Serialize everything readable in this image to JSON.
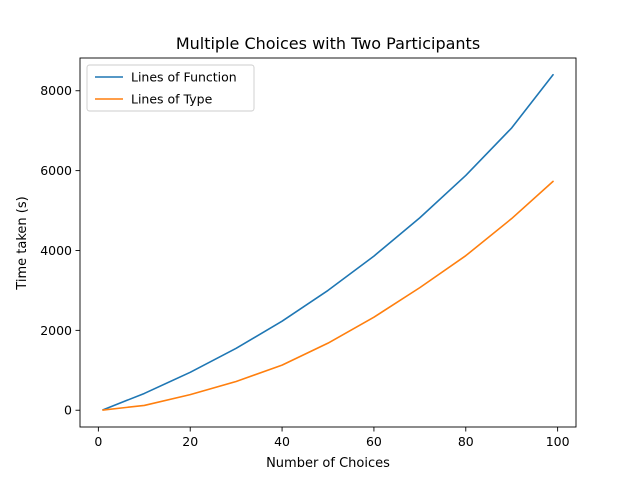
{
  "chart_data": {
    "type": "line",
    "title": "Multiple  Choices with Two Participants",
    "xlabel": "Number of  Choices",
    "ylabel": "Time taken (s)",
    "xlim": [
      -4,
      104
    ],
    "ylim": [
      -420,
      8820
    ],
    "xticks": [
      0,
      20,
      40,
      60,
      80,
      100
    ],
    "yticks": [
      0,
      2000,
      4000,
      6000,
      8000
    ],
    "grid": false,
    "legend_position": "upper-left",
    "x": [
      1,
      10,
      20,
      30,
      40,
      50,
      60,
      70,
      80,
      90,
      99
    ],
    "series": [
      {
        "name": "Lines of Function",
        "color": "#1f77b4",
        "values": [
          10,
          420,
          950,
          1550,
          2230,
          3000,
          3860,
          4820,
          5880,
          7070,
          8400
        ]
      },
      {
        "name": "Lines of Type",
        "color": "#ff7f0e",
        "values": [
          5,
          120,
          390,
          720,
          1130,
          1680,
          2330,
          3070,
          3870,
          4800,
          5730
        ]
      }
    ]
  }
}
